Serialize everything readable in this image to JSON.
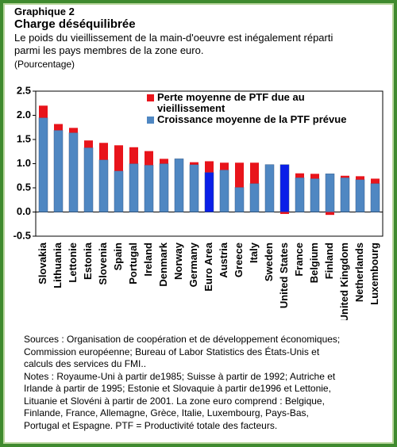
{
  "header": {
    "label": "Graphique 2"
  },
  "notes": {
    "sources": [
      "Sources : Organisation de coopération et de développement économiques;",
      "Commission européenne; Bureau of Labor Statistics des États-Unis et",
      "calculs des services du FMI.."
    ],
    "notes": [
      "Notes : Royaume-Uni à partir de1985; Suisse à partir de 1992; Autriche et",
      "Irlande à partir de 1995; Estonie et Slovaquie à partir de1996 et Lettonie,",
      "Lituanie et Slovéni à partir de 2001. La zone euro comprend : Belgique,",
      "Finlande, France, Allemagne, Grèce, Italie, Luxembourg, Pays-Bas,",
      "Portugal et Espagne. PTF = Productivité totale des facteurs."
    ]
  },
  "chart_data": {
    "type": "stacked_bar",
    "title": "Charge déséquilibrée",
    "subtitle": [
      "Le poids du vieillissement de la main-d'oeuvre est inégalement réparti",
      "parmi les pays membres de la zone euro."
    ],
    "y_label": "(Pourcentage)",
    "categories": [
      "Slovakia",
      "Lithuania",
      "Lettonie",
      "Estonia",
      "Slovenia",
      "Spain",
      "Portugal",
      "Ireland",
      "Denmark",
      "Norway",
      "Germany",
      "Euro Area",
      "Austria",
      "Greece",
      "Italy",
      "Sweden",
      "United States",
      "France",
      "Belgium",
      "Finland",
      "United Kingdom",
      "Netherlands",
      "Luxembourg"
    ],
    "series": [
      {
        "name": "Croissance moyenne de la PTF prévue",
        "color": "#4f87c2",
        "colors": [
          "#4f87c2",
          "#4f87c2",
          "#4f87c2",
          "#4f87c2",
          "#4f87c2",
          "#4f87c2",
          "#4f87c2",
          "#4f87c2",
          "#4f87c2",
          "#4f87c2",
          "#4f87c2",
          "#0a1fe8",
          "#4f87c2",
          "#4f87c2",
          "#4f87c2",
          "#4f87c2",
          "#0a1fe8",
          "#4f87c2",
          "#4f87c2",
          "#4f87c2",
          "#4f87c2",
          "#4f87c2",
          "#4f87c2"
        ],
        "values": [
          1.95,
          1.69,
          1.64,
          1.33,
          1.08,
          0.85,
          1.0,
          0.97,
          1.0,
          1.1,
          0.98,
          0.82,
          0.87,
          0.51,
          0.59,
          0.98,
          0.98,
          0.71,
          0.69,
          0.79,
          0.71,
          0.67,
          0.59
        ]
      },
      {
        "name": "Perte moyenne de PTF due au vieillissement",
        "color": "#e8141b",
        "values": [
          0.25,
          0.13,
          0.1,
          0.15,
          0.35,
          0.53,
          0.34,
          0.29,
          0.1,
          0,
          0.05,
          0.23,
          0.15,
          0.51,
          0.43,
          0,
          -0.04,
          0.09,
          0.1,
          -0.06,
          0.04,
          0.07,
          0.1
        ]
      }
    ],
    "ylim": [
      -0.5,
      2.5
    ],
    "yticks": [
      {
        "value": 2.5,
        "label": "2.5"
      },
      {
        "value": 2,
        "label": "2.0"
      },
      1.5,
      {
        "value": 1,
        "label": "1.0"
      },
      0.5,
      {
        "value": 0,
        "label": "0.0"
      },
      -0.5
    ],
    "grid": false
  }
}
